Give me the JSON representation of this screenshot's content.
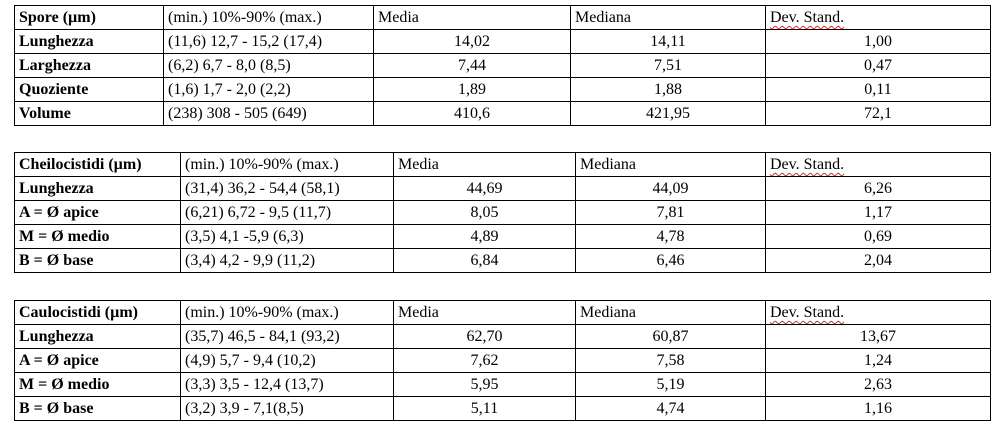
{
  "tables": [
    {
      "header": [
        "Spore (µm)",
        "(min.) 10%-90% (max.)",
        "Media",
        "Mediana",
        "Dev. Stand."
      ],
      "rows": [
        [
          "Lunghezza",
          "(11,6) 12,7 - 15,2 (17,4)",
          "14,02",
          "14,11",
          "1,00"
        ],
        [
          "Larghezza",
          "(6,2) 6,7 - 8,0 (8,5)",
          "7,44",
          "7,51",
          "0,47"
        ],
        [
          "Quoziente",
          "(1,6) 1,7 - 2,0 (2,2)",
          "1,89",
          "1,88",
          "0,11"
        ],
        [
          "Volume",
          "(238) 308 - 505 (649)",
          "410,6",
          "421,95",
          "72,1"
        ]
      ]
    },
    {
      "header": [
        "Cheilocistidi (µm)",
        "(min.) 10%-90% (max.)",
        "Media",
        "Mediana",
        "Dev. Stand."
      ],
      "rows": [
        [
          "Lunghezza",
          "(31,4) 36,2 - 54,4 (58,1)",
          "44,69",
          "44,09",
          "6,26"
        ],
        [
          "A = Ø apice",
          "(6,21) 6,72 - 9,5 (11,7)",
          "8,05",
          "7,81",
          "1,17"
        ],
        [
          "M = Ø medio",
          "(3,5) 4,1 -5,9 (6,3)",
          "4,89",
          "4,78",
          "0,69"
        ],
        [
          "B = Ø base",
          "(3,4) 4,2 - 9,9 (11,2)",
          "6,84",
          "6,46",
          "2,04"
        ]
      ]
    },
    {
      "header": [
        "Caulocistidi (µm)",
        "(min.) 10%-90% (max.)",
        "Media",
        "Mediana",
        "Dev. Stand."
      ],
      "rows": [
        [
          "Lunghezza",
          "(35,7) 46,5 - 84,1 (93,2)",
          "62,70",
          "60,87",
          "13,67"
        ],
        [
          "A = Ø apice",
          "(4,9) 5,7 - 9,4 (10,2)",
          "7,62",
          "7,58",
          "1,24"
        ],
        [
          "M = Ø medio",
          "(3,3) 3,5 - 12,4 (13,7)",
          "5,95",
          "5,19",
          "2,63"
        ],
        [
          "B = Ø base",
          "(3,2) 3,9 - 7,1(8,5)",
          "5,11",
          "4,74",
          "1,16"
        ]
      ]
    }
  ]
}
